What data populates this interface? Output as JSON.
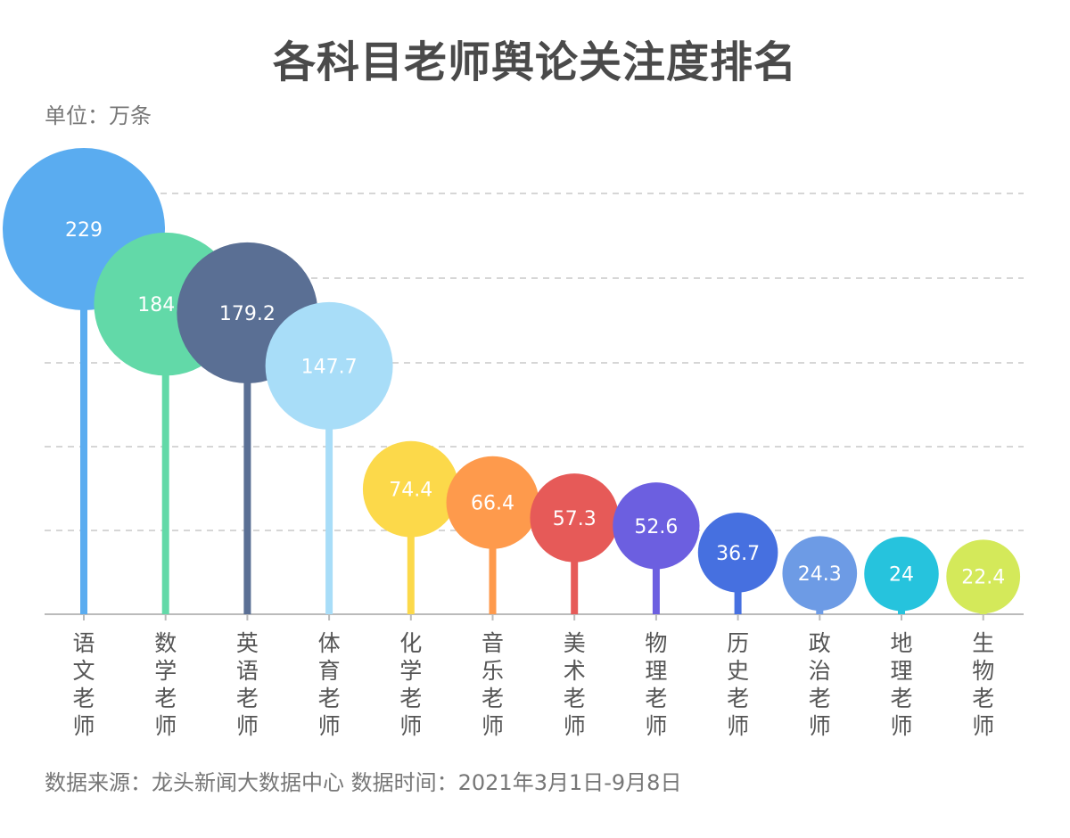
{
  "title": "各科目老师舆论关注度排名",
  "unit": "单位：万条",
  "source": "数据来源：龙头新闻大数据中心 数据时间：2021年3月1日-9月8日",
  "chart_data": {
    "type": "bar",
    "style": "lollipop",
    "grid": true,
    "categories": [
      "语文老师",
      "数学老师",
      "英语老师",
      "体育老师",
      "化学老师",
      "音乐老师",
      "美术老师",
      "物理老师",
      "历史老师",
      "政治老师",
      "地理老师",
      "生物老师"
    ],
    "values": [
      229,
      184.4,
      179.2,
      147.7,
      74.4,
      66.4,
      57.3,
      52.6,
      36.7,
      24.3,
      24,
      22.4
    ],
    "value_labels": [
      "229",
      "184.4",
      "179.2",
      "147.7",
      "74.4",
      "66.4",
      "57.3",
      "52.6",
      "36.7",
      "24.3",
      "24",
      "22.4"
    ],
    "colors": [
      "#5aacf0",
      "#62d9a8",
      "#5a6f94",
      "#a8ddf8",
      "#fcd94a",
      "#fe9a4c",
      "#e65a58",
      "#6c5fe0",
      "#4670e0",
      "#6d9be5",
      "#26c3dd",
      "#d4e95a"
    ]
  }
}
